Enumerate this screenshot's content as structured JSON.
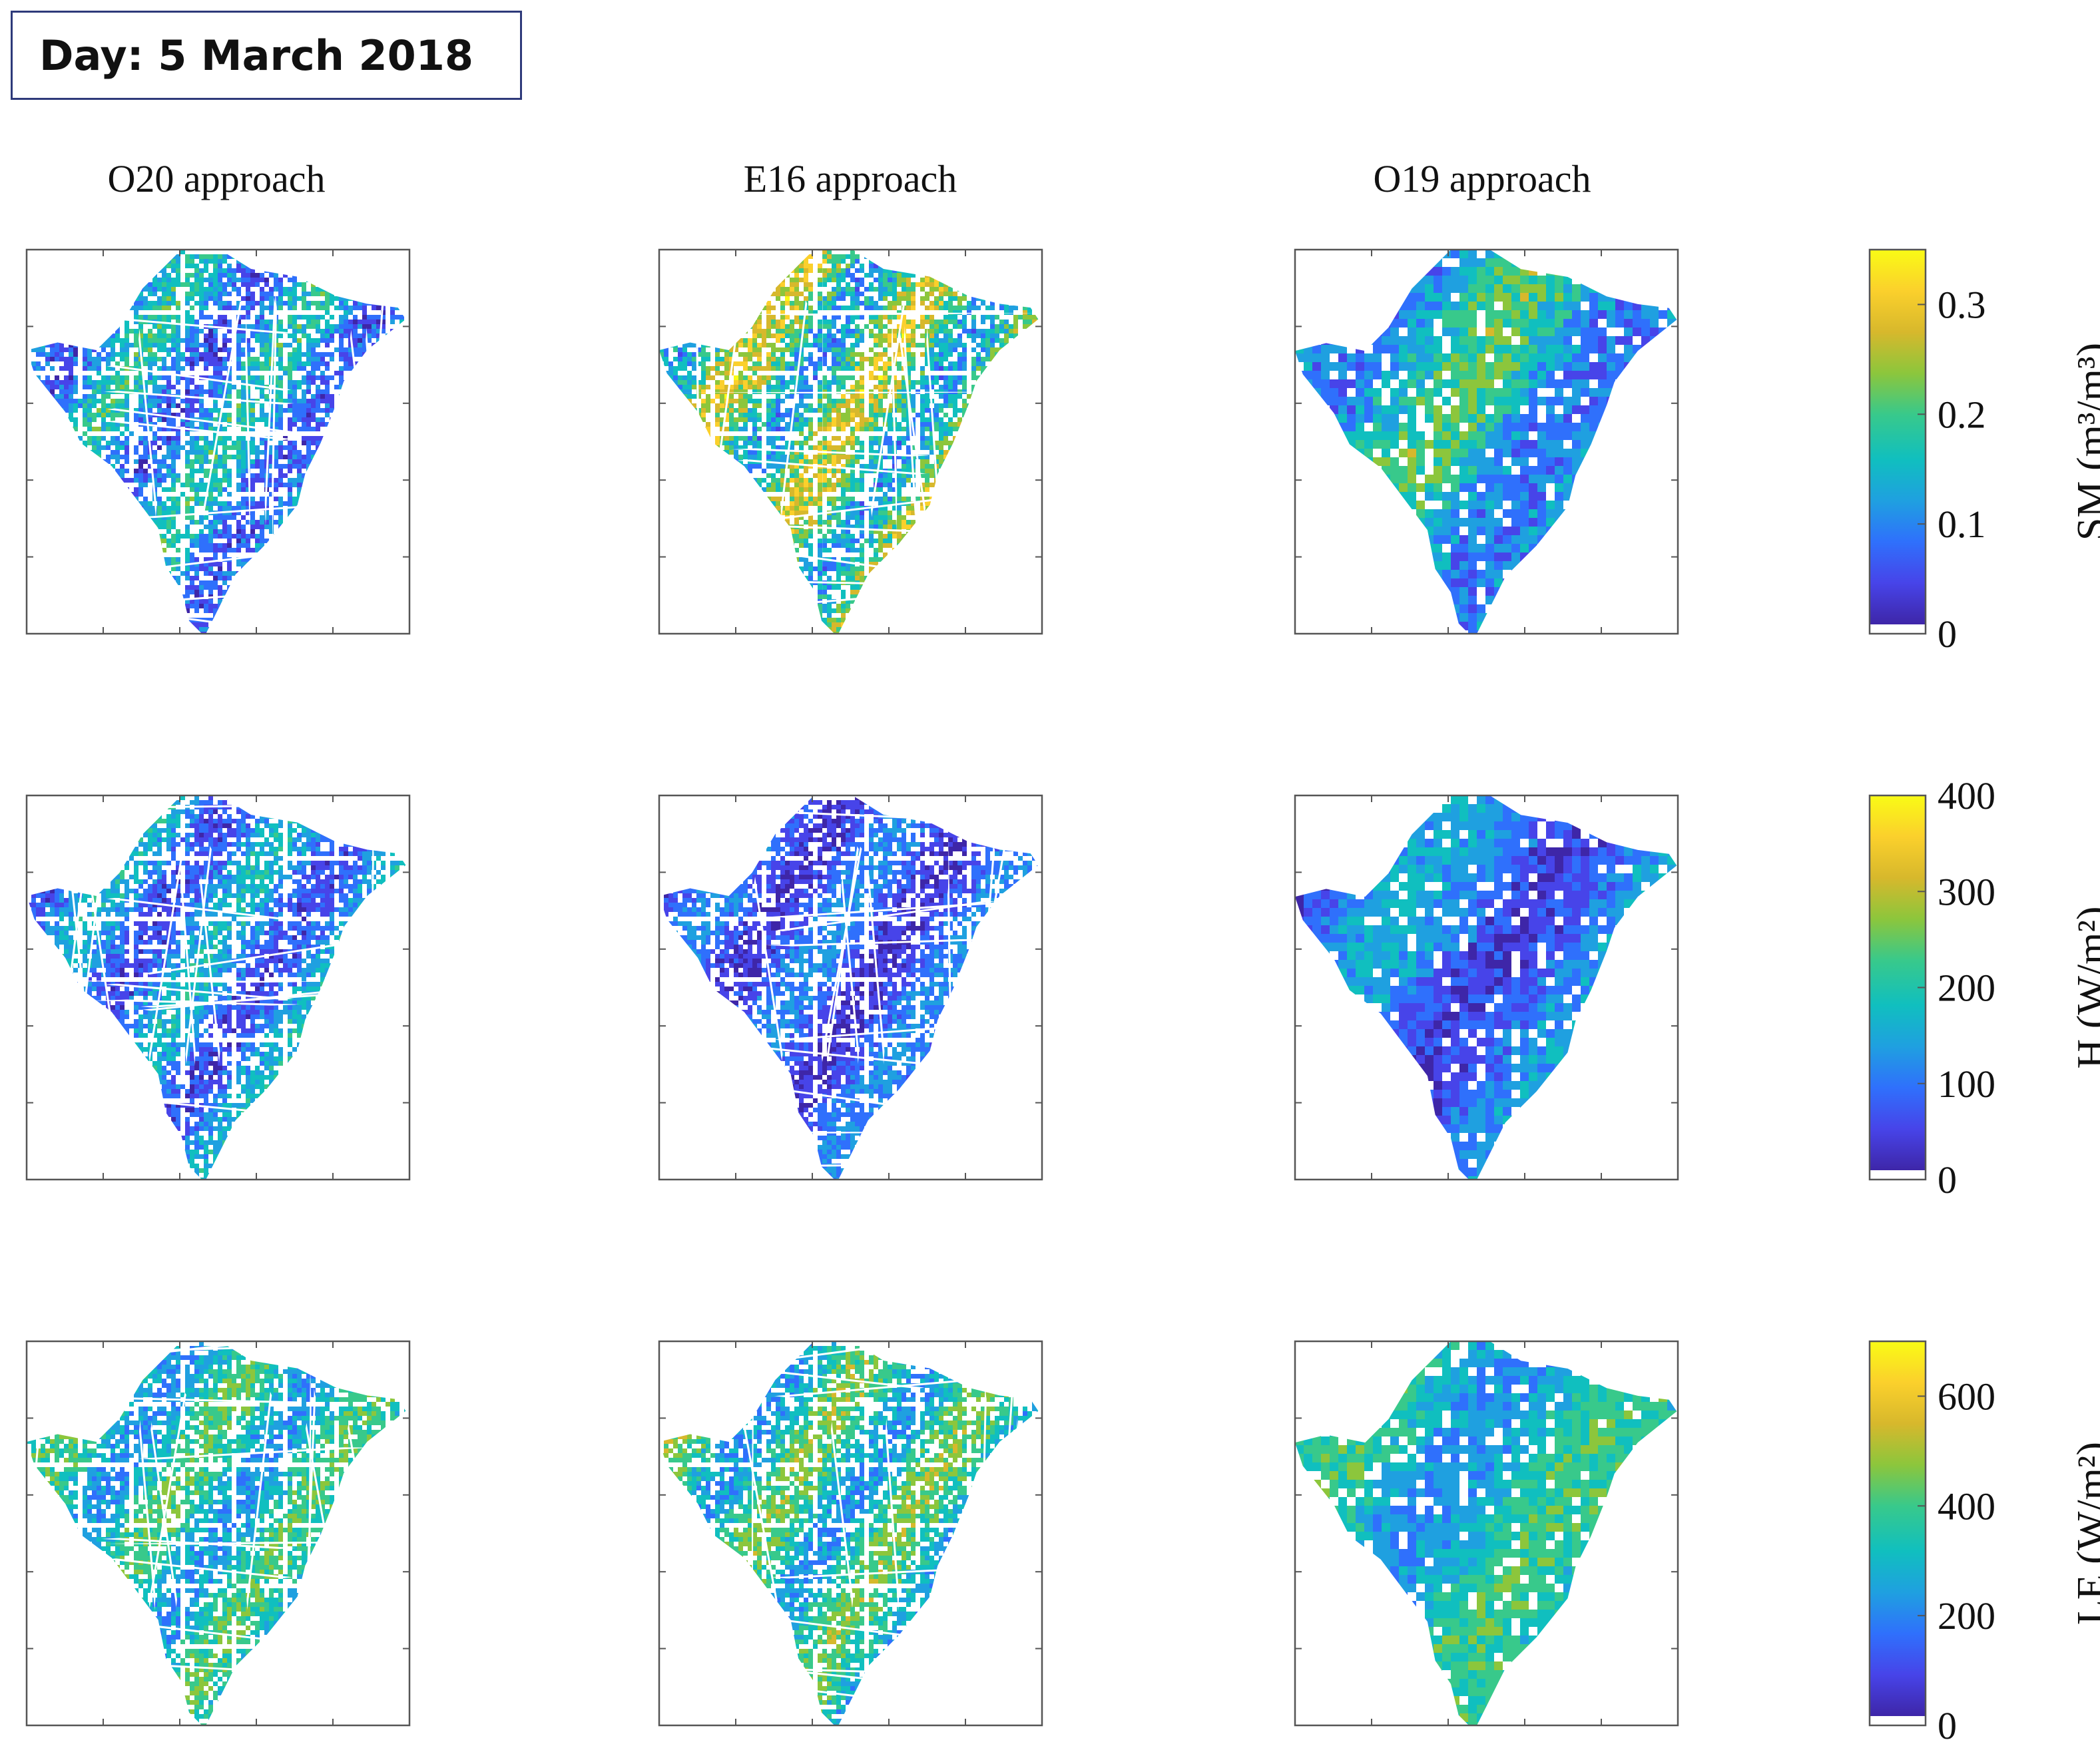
{
  "header": {
    "day_label": "Day: 5 March 2018"
  },
  "columns": [
    {
      "key": "O20",
      "title": "O20 approach"
    },
    {
      "key": "E16",
      "title": "E16 approach"
    },
    {
      "key": "O19",
      "title": "O19 approach"
    }
  ],
  "chart_data": [
    {
      "type": "heatmap",
      "variable": "SM",
      "colorbar": {
        "label": "SM  (m³/m³)",
        "range": [
          0,
          0.35
        ],
        "ticks": [
          0,
          0.1,
          0.2,
          0.3
        ],
        "tick_labels": [
          "0",
          "0.1",
          "0.2",
          "0.3"
        ]
      },
      "panels": [
        {
          "approach": "O20 approach",
          "typical_range": [
            0.02,
            0.22
          ]
        },
        {
          "approach": "E16 approach",
          "typical_range": [
            0.06,
            0.32
          ]
        },
        {
          "approach": "O19 approach",
          "typical_range": [
            0.04,
            0.25
          ]
        }
      ]
    },
    {
      "type": "heatmap",
      "variable": "H",
      "colorbar": {
        "label": "H (W/m²)",
        "range": [
          0,
          400
        ],
        "ticks": [
          0,
          100,
          200,
          300,
          400
        ],
        "tick_labels": [
          "0",
          "100",
          "200",
          "300",
          "400"
        ]
      },
      "panels": [
        {
          "approach": "O20 approach",
          "typical_range": [
            20,
            220
          ]
        },
        {
          "approach": "E16 approach",
          "typical_range": [
            10,
            160
          ]
        },
        {
          "approach": "O19 approach",
          "typical_range": [
            15,
            200
          ]
        }
      ]
    },
    {
      "type": "heatmap",
      "variable": "LE",
      "colorbar": {
        "label": "LE (W/m²)",
        "range": [
          0,
          700
        ],
        "ticks": [
          0,
          200,
          400,
          600
        ],
        "tick_labels": [
          "0",
          "200",
          "400",
          "600"
        ]
      },
      "panels": [
        {
          "approach": "O20 approach",
          "typical_range": [
            150,
            480
          ]
        },
        {
          "approach": "E16 approach",
          "typical_range": [
            150,
            520
          ]
        },
        {
          "approach": "O19 approach",
          "typical_range": [
            150,
            460
          ]
        }
      ]
    }
  ],
  "colormap": [
    "#3e26a8",
    "#4744e9",
    "#2f70fc",
    "#1fa0e0",
    "#10bfbf",
    "#38c98b",
    "#8cc63c",
    "#d7b82c",
    "#fbd02c",
    "#f9fb15"
  ]
}
